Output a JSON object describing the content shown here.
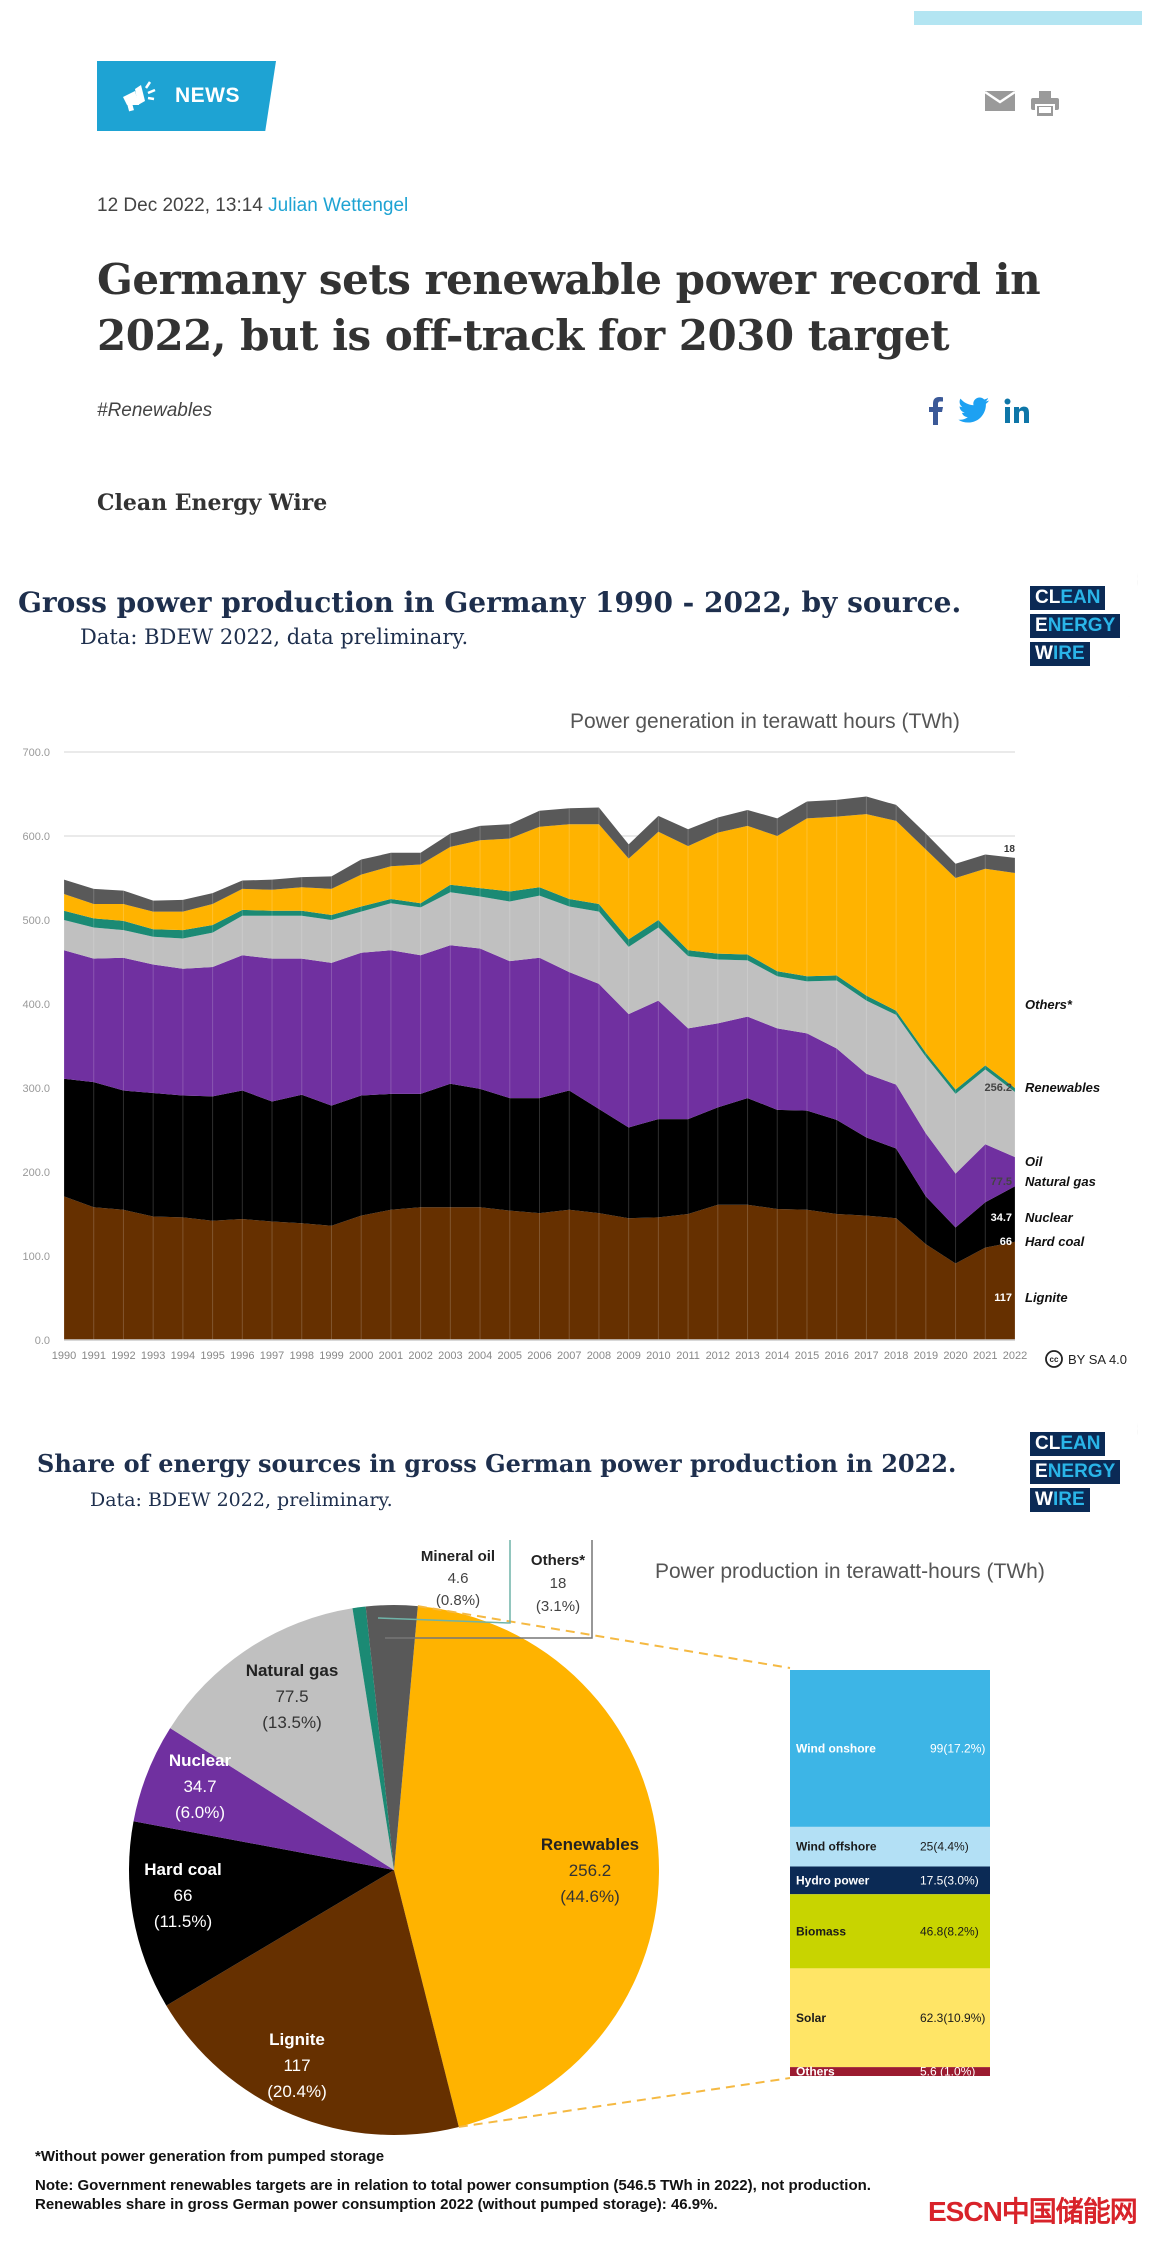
{
  "article": {
    "badge": "NEWS",
    "date": "12 Dec 2022, 13:14",
    "author": "Julian Wettengel",
    "headline": "Germany sets renewable power record in 2022, but is off-track for 2030 target",
    "tag": "#Renewables",
    "source": "Clean Energy Wire"
  },
  "icons": {
    "badge": "megaphone-icon",
    "email": "email-icon",
    "print": "print-icon",
    "facebook": "facebook-icon",
    "twitter": "twitter-icon",
    "linkedin": "linkedin-icon"
  },
  "logo": {
    "line1a": "CL",
    "line1b": "EAN",
    "line2a": "E",
    "line2b": "NERGY",
    "line3a": "W",
    "line3b": "IRE"
  },
  "colors": {
    "accent": "#1ea3d3",
    "lignite": "#663000",
    "hard_coal": "#000000",
    "nuclear": "#7030a0",
    "natural_gas": "#c0c0c0",
    "oil": "#1b8a74",
    "renewables": "#ffb300",
    "others": "#595959"
  },
  "chart_data": [
    {
      "type": "area",
      "title": "Gross power production in Germany 1990 - 2022, by source.",
      "subtitle": "Data: BDEW 2022, data preliminary.",
      "ylabel": "Power generation in terawatt hours (TWh)",
      "xlabel": "",
      "ylim": [
        0,
        700
      ],
      "yticks": [
        "0.0",
        "100.0",
        "200.0",
        "300.0",
        "400.0",
        "500.0",
        "600.0",
        "700.0"
      ],
      "grid": true,
      "stacked": true,
      "x": [
        "1990",
        "1991",
        "1992",
        "1993",
        "1994",
        "1995",
        "1996",
        "1997",
        "1998",
        "1999",
        "2000",
        "2001",
        "2002",
        "2003",
        "2004",
        "2005",
        "2006",
        "2007",
        "2008",
        "2009",
        "2010",
        "2011",
        "2012",
        "2013",
        "2014",
        "2015",
        "2016",
        "2017",
        "2018",
        "2019",
        "2020",
        "2021",
        "2022"
      ],
      "series": [
        {
          "name": "Lignite",
          "color": "#663000",
          "end_label": "117",
          "values": [
            171,
            158,
            155,
            147,
            146,
            142,
            144,
            141,
            139,
            136,
            148,
            155,
            158,
            158,
            158,
            154,
            151,
            155,
            151,
            145,
            146,
            150,
            161,
            161,
            156,
            155,
            150,
            148,
            145,
            114,
            91,
            110,
            117
          ]
        },
        {
          "name": "Hard coal",
          "color": "#000000",
          "end_label": "66",
          "values": [
            140,
            149,
            142,
            147,
            145,
            148,
            153,
            143,
            153,
            143,
            143,
            138,
            135,
            147,
            141,
            134,
            137,
            142,
            124,
            108,
            117,
            113,
            116,
            127,
            118,
            118,
            112,
            93,
            83,
            57,
            43,
            54,
            66
          ]
        },
        {
          "name": "Nuclear",
          "color": "#7030a0",
          "end_label": "34.7",
          "values": [
            153,
            147,
            158,
            153,
            151,
            154,
            161,
            170,
            162,
            170,
            170,
            171,
            165,
            165,
            167,
            163,
            167,
            141,
            149,
            135,
            141,
            108,
            100,
            97,
            97,
            92,
            85,
            76,
            76,
            75,
            64,
            69,
            34.7
          ]
        },
        {
          "name": "Natural gas",
          "color": "#c0c0c0",
          "end_label": "77.5",
          "values": [
            36,
            37,
            33,
            33,
            36,
            41,
            47,
            51,
            51,
            51,
            49,
            56,
            57,
            63,
            62,
            71,
            74,
            78,
            86,
            80,
            87,
            86,
            76,
            67,
            62,
            62,
            81,
            87,
            83,
            91,
            95,
            89,
            77.5
          ]
        },
        {
          "name": "Oil",
          "color": "#1b8a74",
          "end_label": "",
          "values": [
            11,
            11,
            11,
            9,
            10,
            9,
            7,
            6,
            6,
            6,
            6,
            5,
            5,
            9,
            10,
            12,
            10,
            9,
            9,
            9,
            9,
            7,
            7,
            7,
            6,
            6,
            6,
            6,
            5,
            5,
            5,
            5,
            4.6
          ]
        },
        {
          "name": "Renewables",
          "color": "#ffb300",
          "end_label": "256.2",
          "values": [
            20,
            17,
            20,
            21,
            22,
            25,
            25,
            25,
            28,
            31,
            38,
            39,
            46,
            45,
            57,
            63,
            72,
            89,
            95,
            96,
            105,
            124,
            144,
            153,
            161,
            188,
            189,
            216,
            226,
            242,
            252,
            234,
            256.2
          ]
        },
        {
          "name": "Others*",
          "color": "#595959",
          "end_label": "18",
          "values": [
            17,
            18,
            16,
            13,
            14,
            13,
            10,
            12,
            12,
            15,
            18,
            16,
            14,
            16,
            17,
            17,
            19,
            19,
            20,
            17,
            19,
            20,
            18,
            19,
            21,
            20,
            20,
            21,
            19,
            19,
            17,
            17,
            18
          ]
        }
      ],
      "legend": "right",
      "license": "BY SA 4.0"
    },
    {
      "type": "pie",
      "title": "Share of energy sources in gross German power production in 2022.",
      "subtitle": "Data: BDEW 2022, preliminary.",
      "unit_label": "Power production in terawatt-hours (TWh)",
      "slices": [
        {
          "name": "Renewables",
          "value": 256.2,
          "percent": "(44.6%)",
          "color": "#ffb300"
        },
        {
          "name": "Lignite",
          "value": 117,
          "percent": "(20.4%)",
          "color": "#663000"
        },
        {
          "name": "Hard coal",
          "value": 66,
          "percent": "(11.5%)",
          "color": "#000000"
        },
        {
          "name": "Nuclear",
          "value": 34.7,
          "percent": "(6.0%)",
          "color": "#7030a0"
        },
        {
          "name": "Natural gas",
          "value": 77.5,
          "percent": "(13.5%)",
          "color": "#c0c0c0"
        },
        {
          "name": "Mineral oil",
          "value": 4.6,
          "percent": "(0.8%)",
          "color": "#1b8a74"
        },
        {
          "name": "Others*",
          "value": 18,
          "percent": "(3.1%)",
          "color": "#595959"
        }
      ],
      "breakdown_title": "Renewables",
      "breakdown": [
        {
          "name": "Wind onshore",
          "value": "99",
          "percent": "(17.2%)",
          "color": "#3db5e6",
          "text": "#ffffff",
          "num": 99
        },
        {
          "name": "Wind offshore",
          "value": "25",
          "percent": "(4.4%)",
          "color": "#b3e0f5",
          "text": "#1a1a1a",
          "num": 25
        },
        {
          "name": "Hydro power",
          "value": "17.5",
          "percent": "(3.0%)",
          "color": "#0b2a55",
          "text": "#ffffff",
          "num": 17.5
        },
        {
          "name": "Biomass",
          "value": "46.8",
          "percent": "(8.2%)",
          "color": "#c8d400",
          "text": "#1a1a1a",
          "num": 46.8
        },
        {
          "name": "Solar",
          "value": "62.3",
          "percent": "(10.9%)",
          "color": "#ffe566",
          "text": "#1a1a1a",
          "num": 62.3
        },
        {
          "name": "Others",
          "value": "5.6 ",
          "percent": "(1.0%)",
          "color": "#9b1b30",
          "text": "#ffffff",
          "num": 5.6
        }
      ]
    }
  ],
  "footnotes": {
    "asterisk": "*Without power generation from pumped storage",
    "note_line1": "Note: Government renewables targets are in relation to total power consumption (546.5 TWh in 2022), not production.",
    "note_line2": "Renewables share in gross German power consumption 2022 (without pumped storage): 46.9%.",
    "watermark": "ESCN中国储能网"
  }
}
